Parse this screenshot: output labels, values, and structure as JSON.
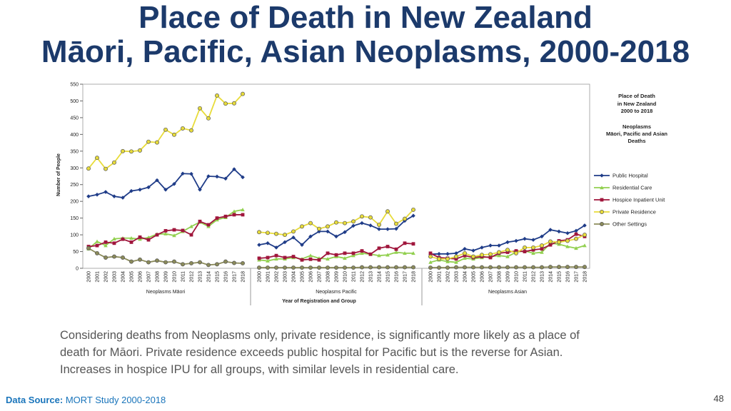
{
  "slide": {
    "title": [
      "Place of Death in New Zealand",
      "Māori, Pacific, Asian Neoplasms, 2000-2018"
    ],
    "caption": [
      "Considering deaths from Neoplasms only, private residence, is significantly more likely as a place of",
      "death for Māori. Private residence exceeds public hospital for Pacific but is the reverse for Asian.",
      "Increases in hospice IPU for all groups, with similar levels in residential care."
    ],
    "source_label": "Data Source:",
    "source": "MORT Study 2000-2018",
    "page_number": "48"
  },
  "chart_data": {
    "type": "line",
    "legend_title": [
      "Place of Death",
      "in New Zealand",
      "2000 to 2018",
      "Neoplasms",
      "Māori, Pacific and Asian",
      "Deaths"
    ],
    "ylabel": "Number of People",
    "xlabel": "Year of Registration and Group",
    "ylim": [
      0,
      550
    ],
    "yticks": [
      0,
      50,
      100,
      150,
      200,
      250,
      300,
      350,
      400,
      450,
      500,
      550
    ],
    "series": [
      {
        "name": "Public Hospital",
        "color": "#1f3c88",
        "marker": "diamond"
      },
      {
        "name": "Residential Care",
        "color": "#92d050",
        "marker": "triangle"
      },
      {
        "name": "Hospice Inpatient Unit",
        "color": "#a0163c",
        "marker": "square"
      },
      {
        "name": "Private Residence",
        "color": "#e8dc3a",
        "marker": "circle"
      },
      {
        "name": "Other Settings",
        "color": "#8b8b5a",
        "marker": "circle"
      }
    ],
    "groups": [
      {
        "name": "Neoplasms Māori",
        "categories": [
          "2000",
          "2001",
          "2002",
          "2003",
          "2004",
          "2005",
          "2006",
          "2007",
          "2008",
          "2009",
          "2010",
          "2011",
          "2012",
          "2013",
          "2014",
          "2015",
          "2016",
          "2017",
          "2018"
        ],
        "values": [
          [
            215,
            220,
            228,
            215,
            211,
            231,
            235,
            242,
            263,
            235,
            252,
            283,
            282,
            235,
            275,
            274,
            268,
            296,
            272
          ],
          [
            58,
            80,
            68,
            88,
            90,
            90,
            87,
            92,
            102,
            103,
            98,
            110,
            125,
            138,
            125,
            145,
            152,
            170,
            175
          ],
          [
            65,
            68,
            78,
            75,
            87,
            78,
            93,
            85,
            100,
            112,
            115,
            113,
            100,
            140,
            130,
            150,
            155,
            160,
            160
          ],
          [
            298,
            330,
            297,
            316,
            350,
            349,
            352,
            378,
            376,
            414,
            399,
            418,
            412,
            478,
            448,
            516,
            492,
            493,
            521
          ],
          [
            60,
            45,
            32,
            35,
            32,
            20,
            26,
            18,
            23,
            18,
            20,
            12,
            15,
            18,
            10,
            12,
            20,
            16,
            15
          ]
        ]
      },
      {
        "name": "Neoplasms Pacific",
        "categories": [
          "2000",
          "2001",
          "2002",
          "2003",
          "2004",
          "2005",
          "2006",
          "2007",
          "2008",
          "2009",
          "2010",
          "2011",
          "2012",
          "2013",
          "2014",
          "2015",
          "2016",
          "2017",
          "2018"
        ],
        "values": [
          [
            70,
            75,
            62,
            78,
            92,
            70,
            95,
            110,
            110,
            95,
            108,
            127,
            135,
            128,
            117,
            117,
            118,
            142,
            157
          ],
          [
            25,
            22,
            28,
            28,
            32,
            28,
            38,
            30,
            28,
            35,
            30,
            38,
            45,
            42,
            38,
            40,
            48,
            45,
            45
          ],
          [
            30,
            32,
            38,
            32,
            35,
            25,
            27,
            25,
            45,
            40,
            45,
            45,
            52,
            42,
            60,
            65,
            57,
            75,
            73
          ],
          [
            108,
            106,
            103,
            100,
            110,
            125,
            135,
            118,
            125,
            137,
            135,
            140,
            155,
            152,
            130,
            170,
            133,
            148,
            175
          ],
          [
            2,
            2,
            2,
            2,
            2,
            2,
            2,
            2,
            2,
            2,
            2,
            2,
            3,
            3,
            3,
            3,
            3,
            3,
            3
          ]
        ]
      },
      {
        "name": "Neoplasms Asian",
        "categories": [
          "2000",
          "2001",
          "2002",
          "2003",
          "2004",
          "2005",
          "2006",
          "2007",
          "2008",
          "2009",
          "2010",
          "2011",
          "2012",
          "2013",
          "2014",
          "2015",
          "2016",
          "2017",
          "2018"
        ],
        "values": [
          [
            42,
            43,
            43,
            45,
            58,
            53,
            62,
            68,
            68,
            78,
            82,
            88,
            85,
            95,
            115,
            110,
            105,
            112,
            128
          ],
          [
            18,
            25,
            20,
            18,
            30,
            28,
            32,
            35,
            38,
            35,
            48,
            52,
            45,
            48,
            75,
            72,
            65,
            60,
            68
          ],
          [
            45,
            32,
            30,
            28,
            38,
            32,
            35,
            32,
            45,
            48,
            52,
            50,
            55,
            58,
            70,
            82,
            85,
            102,
            95
          ],
          [
            35,
            28,
            28,
            35,
            45,
            35,
            40,
            42,
            48,
            55,
            45,
            62,
            62,
            68,
            80,
            78,
            82,
            88,
            100
          ],
          [
            2,
            2,
            2,
            3,
            3,
            3,
            3,
            3,
            3,
            3,
            3,
            3,
            3,
            3,
            4,
            4,
            4,
            4,
            4
          ]
        ]
      }
    ]
  }
}
